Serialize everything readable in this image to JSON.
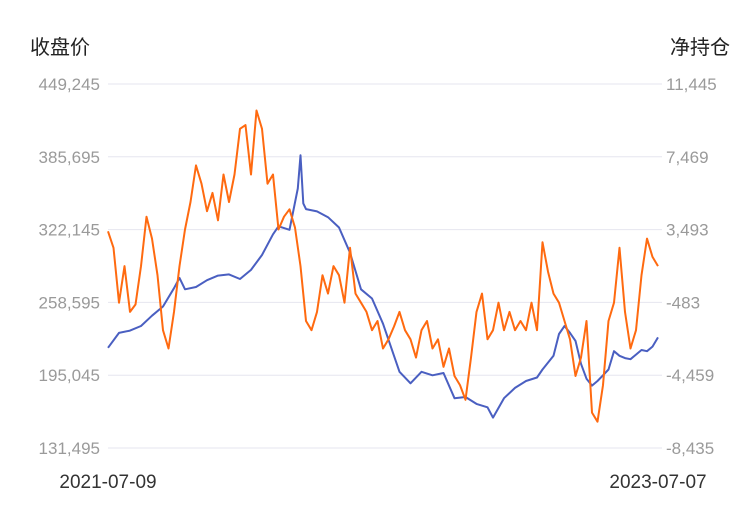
{
  "chart_data": {
    "type": "line",
    "y_left_label": "收盘价",
    "y_right_label": "净持仓",
    "y_left_ticks": [
      "449,245",
      "385,695",
      "322,145",
      "258,595",
      "195,045",
      "131,495"
    ],
    "y_right_ticks": [
      "11,445",
      "7,469",
      "3,493",
      "-483",
      "-4,459",
      "-8,435"
    ],
    "y_left_range": [
      131495,
      449245
    ],
    "y_right_range": [
      -8435,
      11445
    ],
    "x_start_label": "2021-07-09",
    "x_end_label": "2023-07-07",
    "grid": true,
    "legend": "none",
    "series": [
      {
        "axis": "left",
        "color": "#4a5fc1",
        "points": [
          [
            0,
            219000
          ],
          [
            0.02,
            232000
          ],
          [
            0.04,
            234000
          ],
          [
            0.06,
            238000
          ],
          [
            0.08,
            247000
          ],
          [
            0.1,
            255000
          ],
          [
            0.12,
            271000
          ],
          [
            0.13,
            280000
          ],
          [
            0.14,
            270000
          ],
          [
            0.16,
            272000
          ],
          [
            0.18,
            278000
          ],
          [
            0.2,
            282000
          ],
          [
            0.22,
            283000
          ],
          [
            0.24,
            279000
          ],
          [
            0.26,
            287000
          ],
          [
            0.28,
            300000
          ],
          [
            0.3,
            318000
          ],
          [
            0.31,
            325000
          ],
          [
            0.33,
            322000
          ],
          [
            0.345,
            358000
          ],
          [
            0.35,
            387000
          ],
          [
            0.355,
            345000
          ],
          [
            0.36,
            340000
          ],
          [
            0.38,
            338000
          ],
          [
            0.4,
            333000
          ],
          [
            0.42,
            324000
          ],
          [
            0.44,
            302000
          ],
          [
            0.46,
            270000
          ],
          [
            0.48,
            262000
          ],
          [
            0.5,
            240000
          ],
          [
            0.52,
            212000
          ],
          [
            0.53,
            198000
          ],
          [
            0.55,
            188000
          ],
          [
            0.57,
            198000
          ],
          [
            0.59,
            195000
          ],
          [
            0.61,
            197000
          ],
          [
            0.63,
            175000
          ],
          [
            0.65,
            176000
          ],
          [
            0.67,
            170000
          ],
          [
            0.69,
            167000
          ],
          [
            0.7,
            158000
          ],
          [
            0.72,
            175000
          ],
          [
            0.74,
            184000
          ],
          [
            0.76,
            190000
          ],
          [
            0.78,
            193000
          ],
          [
            0.79,
            200000
          ],
          [
            0.81,
            212000
          ],
          [
            0.82,
            231000
          ],
          [
            0.83,
            238000
          ],
          [
            0.84,
            232000
          ],
          [
            0.85,
            225000
          ],
          [
            0.86,
            205000
          ],
          [
            0.87,
            192000
          ],
          [
            0.88,
            186000
          ],
          [
            0.89,
            190000
          ],
          [
            0.9,
            195000
          ],
          [
            0.91,
            200000
          ],
          [
            0.92,
            216000
          ],
          [
            0.93,
            212000
          ],
          [
            0.94,
            210000
          ],
          [
            0.95,
            209000
          ],
          [
            0.96,
            213000
          ],
          [
            0.97,
            217000
          ],
          [
            0.98,
            216000
          ],
          [
            0.99,
            220000
          ],
          [
            1.0,
            228000
          ]
        ]
      },
      {
        "axis": "right",
        "color": "#ff6a10",
        "points": [
          [
            0,
            3400
          ],
          [
            0.01,
            2500
          ],
          [
            0.02,
            -500
          ],
          [
            0.03,
            1500
          ],
          [
            0.04,
            -1000
          ],
          [
            0.05,
            -600
          ],
          [
            0.06,
            1500
          ],
          [
            0.07,
            4200
          ],
          [
            0.08,
            3000
          ],
          [
            0.09,
            1000
          ],
          [
            0.1,
            -2000
          ],
          [
            0.11,
            -3000
          ],
          [
            0.12,
            -1000
          ],
          [
            0.13,
            1500
          ],
          [
            0.14,
            3500
          ],
          [
            0.15,
            5000
          ],
          [
            0.16,
            7000
          ],
          [
            0.17,
            6000
          ],
          [
            0.18,
            4500
          ],
          [
            0.19,
            5500
          ],
          [
            0.2,
            4000
          ],
          [
            0.21,
            6500
          ],
          [
            0.22,
            5000
          ],
          [
            0.23,
            6500
          ],
          [
            0.24,
            9000
          ],
          [
            0.25,
            9200
          ],
          [
            0.26,
            6500
          ],
          [
            0.27,
            10000
          ],
          [
            0.28,
            9000
          ],
          [
            0.29,
            6000
          ],
          [
            0.3,
            6500
          ],
          [
            0.31,
            3500
          ],
          [
            0.32,
            4200
          ],
          [
            0.33,
            4600
          ],
          [
            0.34,
            3600
          ],
          [
            0.35,
            1500
          ],
          [
            0.36,
            -1500
          ],
          [
            0.37,
            -2000
          ],
          [
            0.38,
            -1000
          ],
          [
            0.39,
            1000
          ],
          [
            0.4,
            0
          ],
          [
            0.41,
            1500
          ],
          [
            0.42,
            1000
          ],
          [
            0.43,
            -500
          ],
          [
            0.44,
            2500
          ],
          [
            0.45,
            0
          ],
          [
            0.46,
            -500
          ],
          [
            0.47,
            -1000
          ],
          [
            0.48,
            -2000
          ],
          [
            0.49,
            -1500
          ],
          [
            0.5,
            -3000
          ],
          [
            0.51,
            -2500
          ],
          [
            0.52,
            -1800
          ],
          [
            0.53,
            -1000
          ],
          [
            0.54,
            -2000
          ],
          [
            0.55,
            -2500
          ],
          [
            0.56,
            -3500
          ],
          [
            0.57,
            -2000
          ],
          [
            0.58,
            -1500
          ],
          [
            0.59,
            -3000
          ],
          [
            0.6,
            -2500
          ],
          [
            0.61,
            -4000
          ],
          [
            0.62,
            -3000
          ],
          [
            0.63,
            -4500
          ],
          [
            0.64,
            -5000
          ],
          [
            0.65,
            -5800
          ],
          [
            0.66,
            -3500
          ],
          [
            0.67,
            -1000
          ],
          [
            0.68,
            0
          ],
          [
            0.69,
            -2500
          ],
          [
            0.7,
            -2000
          ],
          [
            0.71,
            -500
          ],
          [
            0.72,
            -2000
          ],
          [
            0.73,
            -1000
          ],
          [
            0.74,
            -2000
          ],
          [
            0.75,
            -1500
          ],
          [
            0.76,
            -2000
          ],
          [
            0.77,
            -500
          ],
          [
            0.78,
            -2000
          ],
          [
            0.79,
            2800
          ],
          [
            0.8,
            1200
          ],
          [
            0.81,
            0
          ],
          [
            0.82,
            -500
          ],
          [
            0.83,
            -1500
          ],
          [
            0.84,
            -2500
          ],
          [
            0.85,
            -4500
          ],
          [
            0.86,
            -3500
          ],
          [
            0.87,
            -1500
          ],
          [
            0.88,
            -6500
          ],
          [
            0.89,
            -7000
          ],
          [
            0.9,
            -5000
          ],
          [
            0.91,
            -1500
          ],
          [
            0.92,
            -500
          ],
          [
            0.93,
            2500
          ],
          [
            0.94,
            -1000
          ],
          [
            0.95,
            -3000
          ],
          [
            0.96,
            -2000
          ],
          [
            0.97,
            1000
          ],
          [
            0.98,
            3000
          ],
          [
            0.99,
            2000
          ],
          [
            1.0,
            1500
          ]
        ]
      }
    ]
  }
}
